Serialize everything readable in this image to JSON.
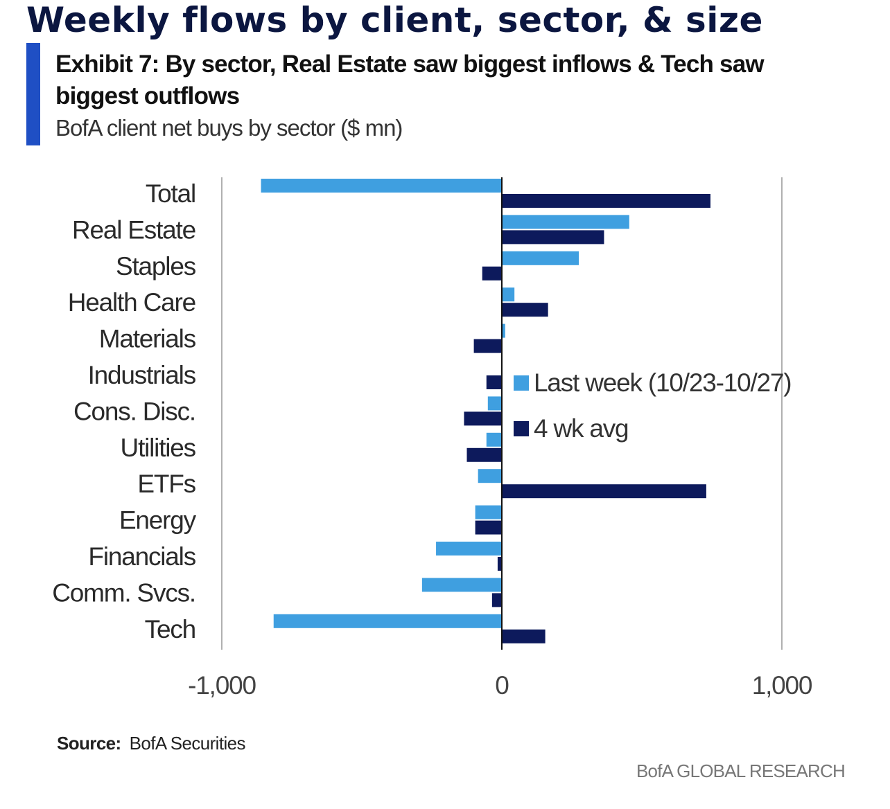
{
  "page": {
    "title": "Weekly flows by client, sector, & size",
    "exhibit_title": "Exhibit 7: By sector, Real Estate saw biggest inflows & Tech saw biggest outflows",
    "subtitle": "BofA client net buys by sector ($ mn)",
    "source_label": "Source:",
    "source_value": "BofA Securities",
    "brand": "BofA GLOBAL RESEARCH"
  },
  "colors": {
    "accent_bar": "#1f4fc4",
    "last_week": "#3f9fe0",
    "four_wk_avg": "#0d1a5c",
    "gridline": "#b0b0b0",
    "zero_line": "#111111"
  },
  "chart_data": {
    "type": "bar",
    "orientation": "horizontal",
    "title": "",
    "xlabel": "",
    "ylabel": "",
    "xlim": [
      -1000,
      1000
    ],
    "x_ticks": [
      -1000,
      0,
      1000
    ],
    "x_tick_labels": [
      "-1,000",
      "0",
      "1,000"
    ],
    "grid": "vertical gridlines at tick marks",
    "legend_position": "center-right",
    "categories": [
      "Total",
      "Real Estate",
      "Staples",
      "Health Care",
      "Materials",
      "Industrials",
      "Cons. Disc.",
      "Utilities",
      "ETFs",
      "Energy",
      "Financials",
      "Comm. Svcs.",
      "Tech"
    ],
    "series": [
      {
        "name": "Last week (10/23-10/27)",
        "color": "#3f9fe0",
        "values": [
          -860,
          455,
          275,
          45,
          12,
          0,
          -50,
          -55,
          -85,
          -95,
          -235,
          -285,
          -815
        ]
      },
      {
        "name": "4 wk avg",
        "color": "#0d1a5c",
        "values": [
          745,
          365,
          -70,
          165,
          -100,
          -55,
          -135,
          -125,
          730,
          -95,
          -15,
          -35,
          155
        ]
      }
    ]
  }
}
